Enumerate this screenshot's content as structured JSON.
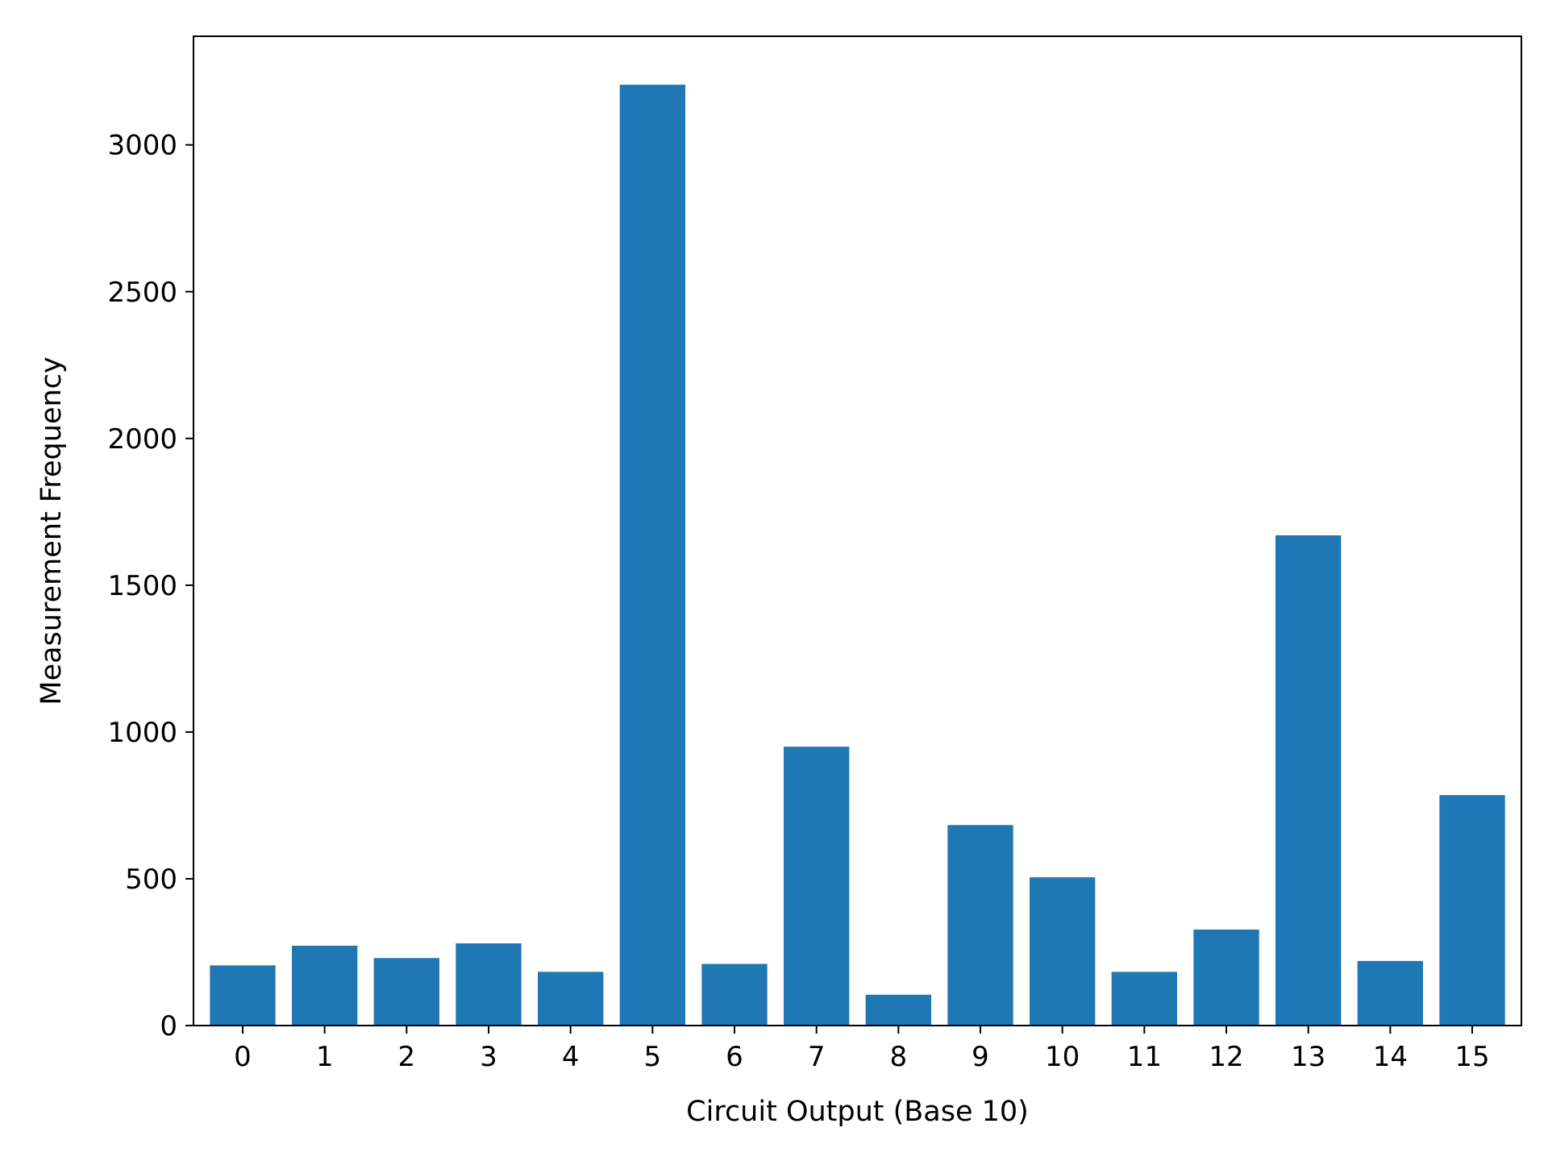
{
  "chart_data": {
    "type": "bar",
    "title": "",
    "xlabel": "Circuit Output (Base 10)",
    "ylabel": "Measurement Frequency",
    "categories": [
      "0",
      "1",
      "2",
      "3",
      "4",
      "5",
      "6",
      "7",
      "8",
      "9",
      "10",
      "11",
      "12",
      "13",
      "14",
      "15"
    ],
    "values": [
      205,
      272,
      230,
      280,
      183,
      3205,
      210,
      950,
      105,
      683,
      505,
      183,
      327,
      1670,
      220,
      785
    ],
    "ylim": [
      0,
      3370
    ],
    "yticks": [
      0,
      500,
      1000,
      1500,
      2000,
      2500,
      3000
    ],
    "ytick_labels": [
      "0",
      "500",
      "1000",
      "1500",
      "2000",
      "2500",
      "3000"
    ],
    "grid": false,
    "legend": false,
    "bar_color": "#1f77b4"
  }
}
